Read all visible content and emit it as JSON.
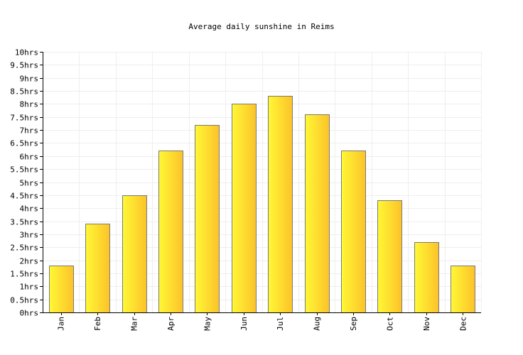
{
  "chart_data": {
    "type": "bar",
    "title": "Average daily sunshine in Reims",
    "xlabel": "",
    "ylabel": "",
    "categories": [
      "Jan",
      "Feb",
      "Mar",
      "Apr",
      "May",
      "Jun",
      "Jul",
      "Aug",
      "Sep",
      "Oct",
      "Nov",
      "Dec"
    ],
    "values": [
      1.8,
      3.4,
      4.5,
      6.2,
      7.2,
      8.0,
      8.3,
      7.6,
      6.2,
      4.3,
      2.7,
      1.8
    ],
    "ylim": [
      0,
      10
    ],
    "ytick_step": 0.5,
    "ytick_labels": [
      "0hrs",
      "0.5hrs",
      "1hrs",
      "1.5hrs",
      "2hrs",
      "2.5hrs",
      "3hrs",
      "3.5hrs",
      "4hrs",
      "4.5hrs",
      "5hrs",
      "5.5hrs",
      "6hrs",
      "6.5hrs",
      "7hrs",
      "7.5hrs",
      "8hrs",
      "8.5hrs",
      "9hrs",
      "9.5hrs",
      "10hrs"
    ],
    "grid": true,
    "legend": "none",
    "colors": {
      "bar_light": "#fff835",
      "bar_dark": "#fcc22a",
      "bar_stroke": "#7a7a7a",
      "grid": "#eeeeee",
      "axis": "#000000"
    }
  }
}
